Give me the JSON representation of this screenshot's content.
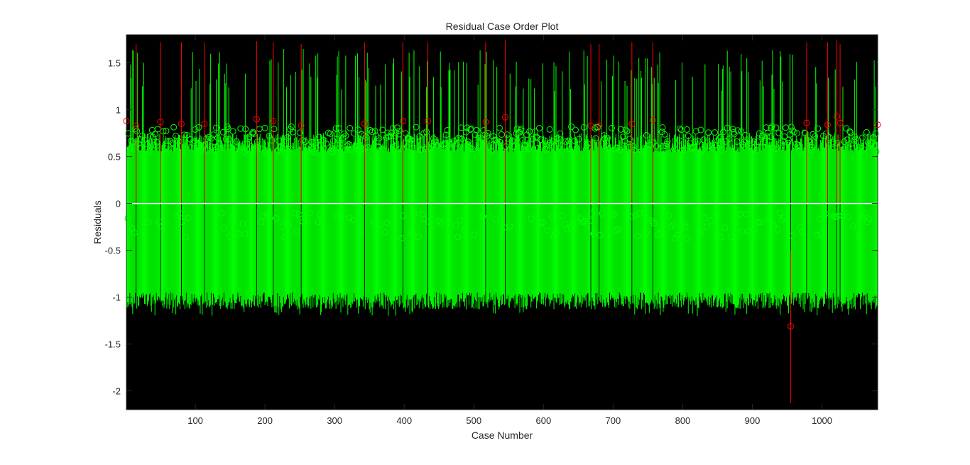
{
  "colors": {
    "figure_background": "#ffffff",
    "axes_background": "#000000",
    "normal_residual": "#00ff00",
    "outlier_residual": "#ff0000",
    "zero_line": "#ffffff",
    "text": "#262626"
  },
  "chart_data": {
    "type": "scatter",
    "title": "Residual Case Order Plot",
    "xlabel": "Case Number",
    "ylabel": "Residuals",
    "xlim": [
      1,
      1080
    ],
    "ylim": [
      -2.2,
      1.8
    ],
    "xticks": [
      100,
      200,
      300,
      400,
      500,
      600,
      700,
      800,
      900,
      1000
    ],
    "yticks": [
      -2,
      -1.5,
      -1,
      -0.5,
      0,
      0.5,
      1,
      1.5
    ],
    "ytick_labels": [
      "-2",
      "-1.5",
      "-1",
      "-0.5",
      "0",
      "0.5",
      "1",
      "1.5"
    ],
    "xtick_labels": [
      "100",
      "200",
      "300",
      "400",
      "500",
      "600",
      "700",
      "800",
      "900",
      "1000"
    ],
    "grid": false,
    "legend": "none",
    "n_cases": 1080,
    "series": [
      {
        "type": "errorbar",
        "color": "#00ff00",
        "typical_residual_range": [
          -0.35,
          0.8
        ],
        "typical_interval": [
          -1.05,
          0.65
        ],
        "typical_interval_max_extent": [
          -1.2,
          1.65
        ]
      },
      {
        "type": "errorbar",
        "color": "#ff0000",
        "points": [
          {
            "x": 1,
            "y": 0.88,
            "lo": 0.05,
            "hi": 1.72
          },
          {
            "x": 15,
            "y": 0.83,
            "lo": 0.0,
            "hi": 1.7
          },
          {
            "x": 50,
            "y": 0.87,
            "lo": 0.0,
            "hi": 1.72
          },
          {
            "x": 80,
            "y": 0.85,
            "lo": 0.0,
            "hi": 1.72
          },
          {
            "x": 113,
            "y": 0.85,
            "lo": 0.0,
            "hi": 1.72
          },
          {
            "x": 188,
            "y": 0.9,
            "lo": 0.0,
            "hi": 1.73
          },
          {
            "x": 212,
            "y": 0.88,
            "lo": 0.0,
            "hi": 1.72
          },
          {
            "x": 252,
            "y": 0.83,
            "lo": 0.0,
            "hi": 1.7
          },
          {
            "x": 343,
            "y": 0.85,
            "lo": 0.0,
            "hi": 1.72
          },
          {
            "x": 398,
            "y": 0.88,
            "lo": 0.0,
            "hi": 1.72
          },
          {
            "x": 434,
            "y": 0.88,
            "lo": 0.0,
            "hi": 1.72
          },
          {
            "x": 517,
            "y": 0.87,
            "lo": 0.0,
            "hi": 1.72
          },
          {
            "x": 545,
            "y": 0.92,
            "lo": 0.0,
            "hi": 1.75
          },
          {
            "x": 668,
            "y": 0.83,
            "lo": 0.0,
            "hi": 1.7
          },
          {
            "x": 680,
            "y": 0.83,
            "lo": 0.0,
            "hi": 1.7
          },
          {
            "x": 727,
            "y": 0.85,
            "lo": 0.0,
            "hi": 1.72
          },
          {
            "x": 757,
            "y": 0.89,
            "lo": 0.0,
            "hi": 1.72
          },
          {
            "x": 955,
            "y": -1.31,
            "lo": -2.13,
            "hi": -0.5
          },
          {
            "x": 978,
            "y": 0.86,
            "lo": 0.0,
            "hi": 1.72
          },
          {
            "x": 1008,
            "y": 0.84,
            "lo": 0.0,
            "hi": 1.72
          },
          {
            "x": 1021,
            "y": 0.93,
            "lo": 0.0,
            "hi": 1.75
          },
          {
            "x": 1026,
            "y": 0.86,
            "lo": 0.0,
            "hi": 1.7
          },
          {
            "x": 1080,
            "y": 0.84,
            "lo": 0.0,
            "hi": 1.72
          }
        ]
      }
    ],
    "reference_line": {
      "y": 0,
      "color": "#ffffff"
    }
  }
}
